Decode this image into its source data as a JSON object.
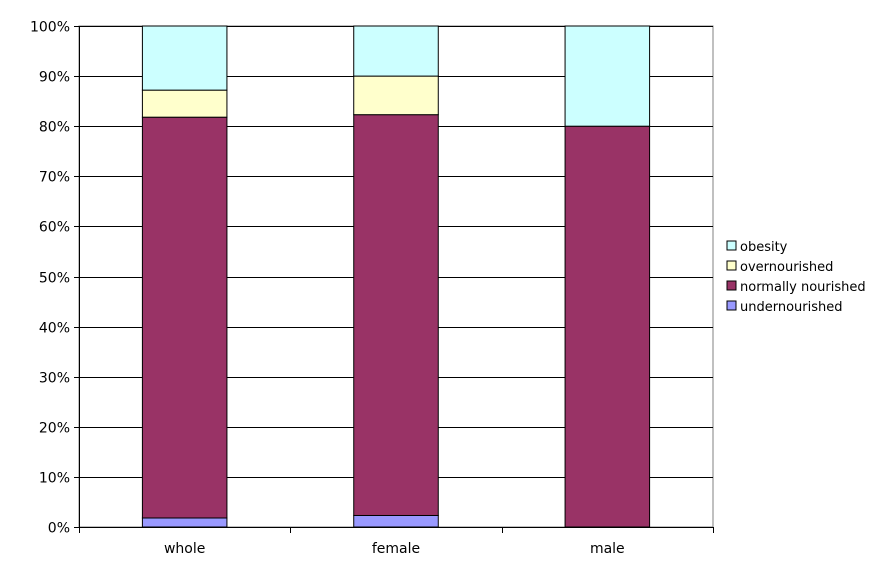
{
  "chart_data": {
    "type": "bar",
    "stacked": true,
    "percent": true,
    "categories": [
      "whole",
      "female",
      "male"
    ],
    "series": [
      {
        "name": "undernourished",
        "color": "#9999ff",
        "values": [
          1.8,
          2.3,
          0
        ]
      },
      {
        "name": "normally nourished",
        "color": "#993366",
        "values": [
          80,
          80,
          80
        ]
      },
      {
        "name": "overnourished",
        "color": "#ffffcc",
        "values": [
          5.4,
          7.7,
          0
        ]
      },
      {
        "name": "obesity",
        "color": "#ccffff",
        "values": [
          12.8,
          10,
          20
        ]
      }
    ],
    "ylim": [
      0,
      100
    ],
    "yticks": [
      "0%",
      "10%",
      "20%",
      "30%",
      "40%",
      "50%",
      "60%",
      "70%",
      "80%",
      "90%",
      "100%"
    ],
    "grid": true,
    "legend_position": "right",
    "legend_order": [
      "obesity",
      "overnourished",
      "normally nourished",
      "undernourished"
    ],
    "title": "",
    "xlabel": "",
    "ylabel": ""
  }
}
